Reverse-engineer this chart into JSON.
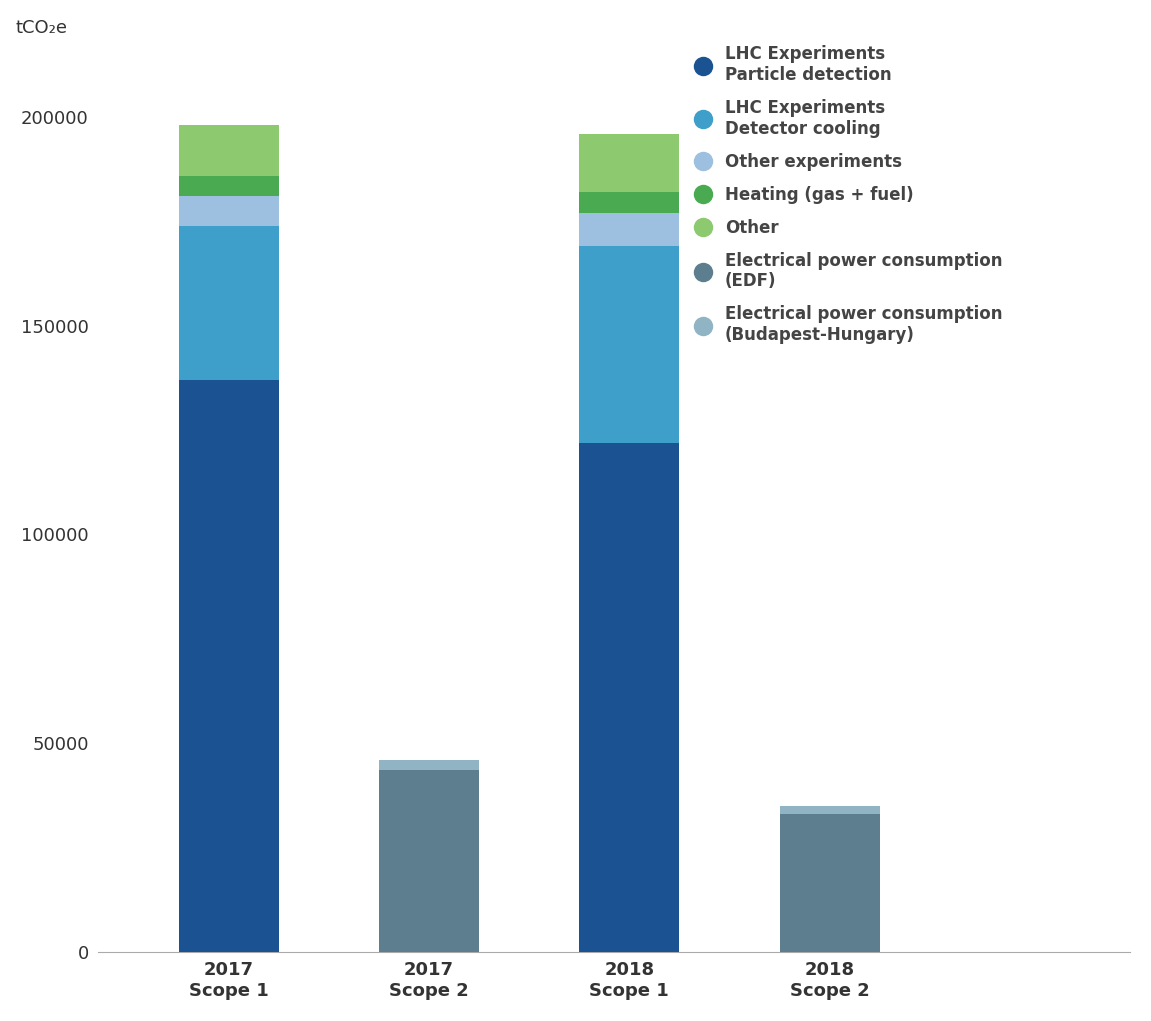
{
  "categories": [
    "2017\nScope 1",
    "2017\nScope 2",
    "2018\nScope 1",
    "2018\nScope 2"
  ],
  "bar_positions": [
    0,
    1,
    2,
    3
  ],
  "bar_width": 0.5,
  "ylim": [
    0,
    215000
  ],
  "yticks": [
    0,
    50000,
    100000,
    150000,
    200000
  ],
  "ylabel": "tCO₂e",
  "background_color": "#ffffff",
  "segments": {
    "lhc_particle": {
      "label": "LHC Experiments\nParticle detection",
      "color": "#1b5291",
      "values": [
        137000,
        0,
        122000,
        0
      ]
    },
    "lhc_cooling": {
      "label": "LHC Experiments\nDetector cooling",
      "color": "#3d9fca",
      "values": [
        37000,
        0,
        47000,
        0
      ]
    },
    "other_experiments": {
      "label": "Other experiments",
      "color": "#9dbfe0",
      "values": [
        7000,
        0,
        8000,
        0
      ]
    },
    "heating": {
      "label": "Heating (gas + fuel)",
      "color": "#4aaa52",
      "values": [
        5000,
        0,
        5000,
        0
      ]
    },
    "other": {
      "label": "Other",
      "color": "#8dc96e",
      "values": [
        12000,
        0,
        14000,
        0
      ]
    },
    "edf": {
      "label": "Electrical power consumption\n(EDF)",
      "color": "#5c7e8e",
      "values": [
        0,
        43500,
        0,
        33000
      ]
    },
    "budapest": {
      "label": "Electrical power consumption\n(Budapest-Hungary)",
      "color": "#90b4c4",
      "values": [
        0,
        2500,
        0,
        2000
      ]
    }
  },
  "legend_entries": [
    {
      "label": "LHC Experiments\nParticle detection",
      "color": "#1b5291"
    },
    {
      "label": "LHC Experiments\nDetector cooling",
      "color": "#3d9fca"
    },
    {
      "label": "Other experiments",
      "color": "#9dbfe0"
    },
    {
      "label": "Heating (gas + fuel)",
      "color": "#4aaa52"
    },
    {
      "label": "Other",
      "color": "#8dc96e"
    },
    {
      "label": "Electrical power consumption\n(EDF)",
      "color": "#5c7e8e"
    },
    {
      "label": "Electrical power consumption\n(Budapest-Hungary)",
      "color": "#90b4c4"
    }
  ]
}
